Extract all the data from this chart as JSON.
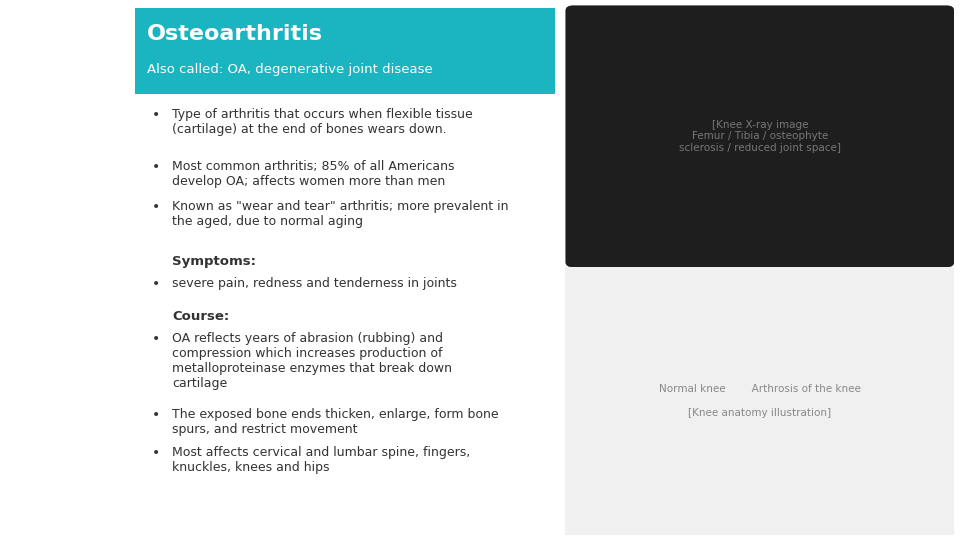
{
  "bg_color": "#ffffff",
  "header_bg": "#1ab5c1",
  "header_text": "Osteoarthritis",
  "header_sub": "Also called: OA, degenerative joint disease",
  "header_text_color": "#ffffff",
  "header_sub_color": "#ffffff",
  "body_text_color": "#333333",
  "bullet_color": "#333333",
  "bullets": [
    "Type of arthritis that occurs when flexible tissue\n(cartilage) at the end of bones wears down.",
    "Most common arthritis; 85% of all Americans\ndevelop OA; affects women more than men",
    "Known as \"wear and tear\" arthritis; more prevalent in\nthe aged, due to normal aging"
  ],
  "symptoms_header": "Symptoms:",
  "symptoms_bullets": [
    "severe pain, redness and tenderness in joints"
  ],
  "course_header": "Course:",
  "course_bullets": [
    "OA reflects years of abrasion (rubbing) and\ncompression which increases production of\nmetalloproteinase enzymes that break down\ncartilage",
    "The exposed bone ends thicken, enlarge, form bone\nspurs, and restrict movement",
    "Most affects cervical and lumbar spine, fingers,\nknuckles, knees and hips"
  ],
  "font_size_body": 9.0,
  "font_size_header_title": 16,
  "font_size_header_sub": 9.5,
  "font_size_section": 9.5
}
